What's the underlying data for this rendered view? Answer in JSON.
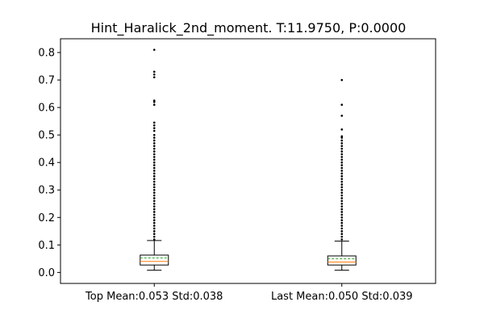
{
  "chart_data": {
    "type": "boxplot",
    "title": "Hint_Haralick_2nd_moment. T:11.9750, P:0.0000",
    "xlabel": "",
    "ylabel": "",
    "ylim": [
      -0.04,
      0.85
    ],
    "yticks": [
      0.0,
      0.1,
      0.2,
      0.3,
      0.4,
      0.5,
      0.6,
      0.7,
      0.8
    ],
    "ytick_labels": [
      "0.0",
      "0.1",
      "0.2",
      "0.3",
      "0.4",
      "0.5",
      "0.6",
      "0.7",
      "0.8"
    ],
    "grid": false,
    "categories": [
      "Top Mean:0.053 Std:0.038",
      "Last Mean:0.050 Std:0.039"
    ],
    "series": [
      {
        "whisker_low": 0.008,
        "q1": 0.027,
        "median": 0.04,
        "mean": 0.053,
        "q3": 0.063,
        "whisker_high": 0.116,
        "outliers": [
          0.81,
          0.73,
          0.72,
          0.71,
          0.625,
          0.62,
          0.61,
          0.545,
          0.535,
          0.525,
          0.515,
          0.5,
          0.49,
          0.48,
          0.47,
          0.46,
          0.45,
          0.44,
          0.43,
          0.42,
          0.41,
          0.4,
          0.39,
          0.38,
          0.37,
          0.36,
          0.35,
          0.34,
          0.33,
          0.32,
          0.31,
          0.3,
          0.29,
          0.28,
          0.27,
          0.26,
          0.25,
          0.24,
          0.23,
          0.22,
          0.21,
          0.2,
          0.19,
          0.18,
          0.17,
          0.16,
          0.15,
          0.14,
          0.13,
          0.12
        ]
      },
      {
        "whisker_low": 0.008,
        "q1": 0.027,
        "median": 0.038,
        "mean": 0.05,
        "q3": 0.06,
        "whisker_high": 0.114,
        "outliers": [
          0.7,
          0.61,
          0.57,
          0.52,
          0.495,
          0.49,
          0.48,
          0.47,
          0.46,
          0.45,
          0.44,
          0.43,
          0.42,
          0.41,
          0.4,
          0.39,
          0.38,
          0.37,
          0.36,
          0.35,
          0.34,
          0.33,
          0.32,
          0.31,
          0.3,
          0.29,
          0.28,
          0.27,
          0.26,
          0.25,
          0.24,
          0.23,
          0.22,
          0.21,
          0.2,
          0.19,
          0.18,
          0.17,
          0.16,
          0.15,
          0.14,
          0.13,
          0.12
        ]
      }
    ],
    "colors": {
      "box": "#000000",
      "median": "#ff7f0e",
      "mean": "#2ca02c",
      "outlier": "#000000"
    }
  }
}
